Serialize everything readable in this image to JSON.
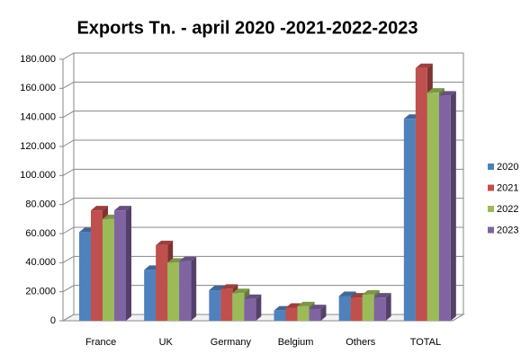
{
  "chart_data": {
    "type": "bar3d",
    "title": "Exports Tn. - april 2020 -2021-2022-2023",
    "categories": [
      "France",
      "UK",
      "Germany",
      "Belgium",
      "Others",
      "TOTAL"
    ],
    "series": [
      {
        "name": "2020",
        "color": "#4f81bd",
        "values": [
          61000,
          35000,
          21000,
          7000,
          17000,
          139000
        ]
      },
      {
        "name": "2021",
        "color": "#c0504d",
        "values": [
          76000,
          52000,
          22000,
          9000,
          16000,
          174000
        ]
      },
      {
        "name": "2022",
        "color": "#9bbb59",
        "values": [
          70000,
          40000,
          19000,
          10000,
          18000,
          157000
        ]
      },
      {
        "name": "2023",
        "color": "#8064a2",
        "values": [
          76000,
          41000,
          15000,
          8000,
          16000,
          155000
        ]
      }
    ],
    "ylim": [
      0,
      180000
    ],
    "yticks": [
      0,
      {
        "value": 20000,
        "label": "20.000"
      },
      {
        "value": 40000,
        "label": "40.000"
      },
      {
        "value": 60000,
        "label": "60.000"
      },
      {
        "value": 80000,
        "label": "80.000"
      },
      {
        "value": 100000,
        "label": "100.000"
      },
      {
        "value": 120000,
        "label": "120.000"
      },
      {
        "value": 140000,
        "label": "140.000"
      },
      {
        "value": 160000,
        "label": "160.000"
      },
      {
        "value": 180000,
        "label": "180.000"
      }
    ],
    "grid": true,
    "legend": "right"
  }
}
